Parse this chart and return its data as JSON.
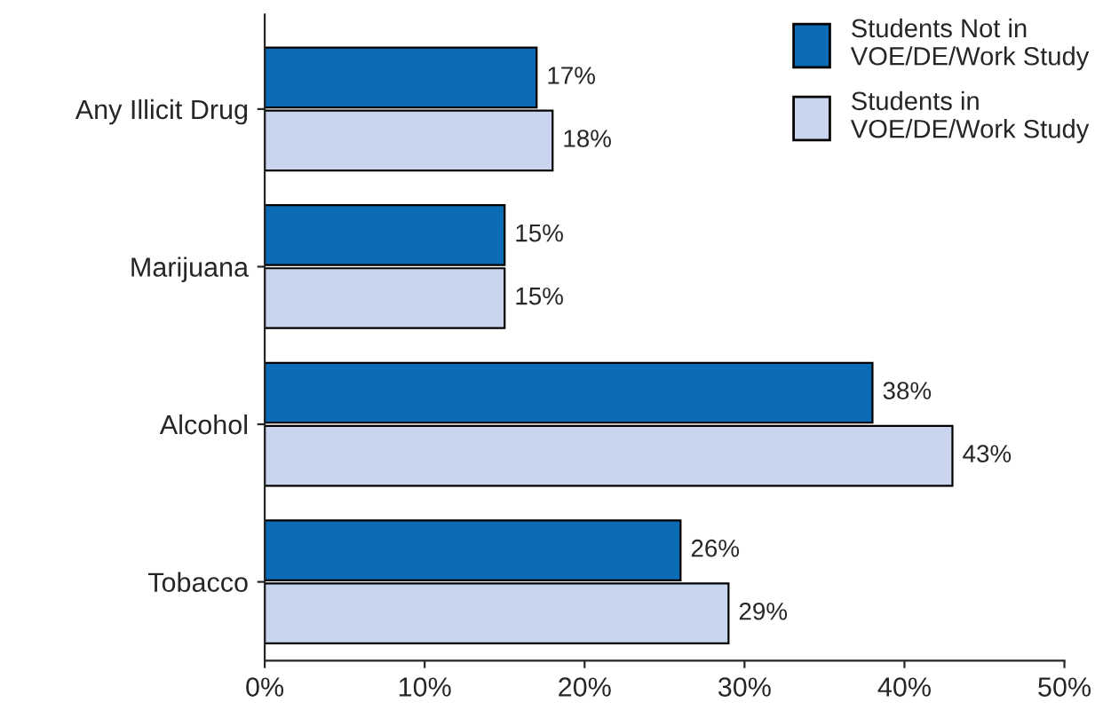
{
  "chart_data": {
    "type": "bar",
    "orientation": "horizontal",
    "categories": [
      "Any Illicit Drug",
      "Marijuana",
      "Alcohol",
      "Tobacco"
    ],
    "series": [
      {
        "name": "Students Not in\nVOE/DE/Work Study",
        "color": "#0b6bb5",
        "values": [
          17,
          15,
          38,
          26
        ],
        "value_labels": [
          "17%",
          "15%",
          "38%",
          "26%"
        ]
      },
      {
        "name": "Students in\nVOE/DE/Work Study",
        "color": "#c9d5ee",
        "values": [
          18,
          15,
          43,
          29
        ],
        "value_labels": [
          "18%",
          "15%",
          "43%",
          "29%"
        ]
      }
    ],
    "xlim": [
      0,
      50
    ],
    "xticks": [
      {
        "value": 0,
        "label": "0%"
      },
      {
        "value": 10,
        "label": "10%"
      },
      {
        "value": 20,
        "label": "20%"
      },
      {
        "value": 30,
        "label": "30%"
      },
      {
        "value": 40,
        "label": "40%"
      },
      {
        "value": 50,
        "label": "50%"
      }
    ],
    "grid": false,
    "legend": "top right"
  }
}
